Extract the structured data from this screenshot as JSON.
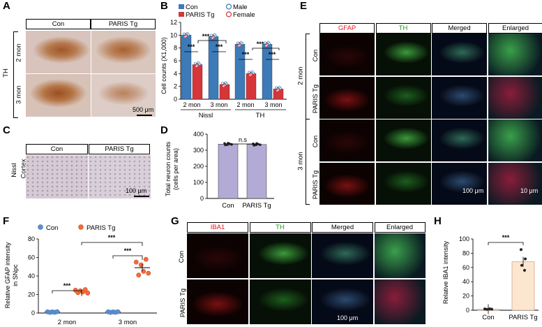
{
  "panels": [
    "A",
    "B",
    "C",
    "D",
    "E",
    "F",
    "G",
    "H"
  ],
  "panelA": {
    "columns": [
      "Con",
      "PARIS Tg"
    ],
    "rows": [
      "2 mon",
      "3 mon"
    ],
    "stain": "TH",
    "scale": "500 μm"
  },
  "panelC": {
    "columns": [
      "Con",
      "PARIS Tg"
    ],
    "row_label_1": "Nissl",
    "row_label_2": "Cortex",
    "scale": "100 μm"
  },
  "panelE": {
    "columns": [
      "GFAP",
      "TH",
      "Merged",
      "Enlarged"
    ],
    "column_colors": [
      "#e8141c",
      "#1a9a1a",
      "#000000",
      "#000000"
    ],
    "groups": [
      "2 mon",
      "3 mon"
    ],
    "rows": [
      "Con",
      "PARIS Tg",
      "Con",
      "PARIS Tg"
    ],
    "scale_left": "100 μm",
    "scale_right": "10 μm"
  },
  "panelG": {
    "columns": [
      "IBA1",
      "TH",
      "Merged",
      "Enlarged"
    ],
    "column_colors": [
      "#e8141c",
      "#1a9a1a",
      "#000000",
      "#000000"
    ],
    "rows": [
      "Con",
      "PARIS Tg"
    ],
    "scale": "100 μm"
  },
  "chart_data": [
    {
      "panel": "B",
      "type": "bar",
      "ylabel": "Cell counts (X1,000)",
      "ylim": [
        0,
        12
      ],
      "yticks": [
        0,
        2,
        4,
        6,
        8,
        10,
        12
      ],
      "legend": [
        "Con",
        "PARIS Tg",
        "Male",
        "Female"
      ],
      "legend_colors": [
        "#3d7ab8",
        "#d6353a",
        "#3d7ab8",
        "#d6353a"
      ],
      "groups": [
        "Nissl",
        "TH"
      ],
      "categories": [
        "2 mon",
        "3 mon",
        "2 mon",
        "3 mon"
      ],
      "series": [
        {
          "name": "Con",
          "values": [
            10.0,
            9.8,
            8.6,
            8.6
          ]
        },
        {
          "name": "PARIS Tg",
          "values": [
            5.4,
            2.3,
            4.0,
            1.6
          ]
        }
      ],
      "significance": "***"
    },
    {
      "panel": "D",
      "type": "bar",
      "ylabel": "Total neuron counts (cells per area)",
      "ylabel_line1": "Total neuron counts",
      "ylabel_line2": "(cells per area)",
      "ylim": [
        0,
        400
      ],
      "yticks": [
        0,
        100,
        200,
        300,
        400
      ],
      "categories": [
        "Con",
        "PARIS Tg"
      ],
      "values": [
        338,
        336
      ],
      "significance": "n.s"
    },
    {
      "panel": "F",
      "type": "scatter",
      "ylabel": "Relative GFAP intensity in SNpc",
      "ylabel_line1": "Relative GFAP intensity",
      "ylabel_line2": "in SNpc",
      "ylim": [
        0,
        80
      ],
      "yticks": [
        0,
        20,
        40,
        60,
        80
      ],
      "legend": [
        "Con",
        "PARIS Tg"
      ],
      "legend_colors": [
        "#5b8fd0",
        "#f26b3a"
      ],
      "categories": [
        "2 mon",
        "3 mon"
      ],
      "series": [
        {
          "name": "Con",
          "means": [
            1.0,
            1.0
          ]
        },
        {
          "name": "PARIS Tg",
          "means": [
            23.5,
            49.0
          ]
        }
      ],
      "significance": "***"
    },
    {
      "panel": "H",
      "type": "bar",
      "ylabel": "Relative IBA1 intensity",
      "ylim": [
        0,
        100
      ],
      "yticks": [
        0,
        20,
        40,
        60,
        80,
        100
      ],
      "categories": [
        "Con",
        "PARIS Tg"
      ],
      "values": [
        1.5,
        68
      ],
      "significance": "***"
    }
  ]
}
